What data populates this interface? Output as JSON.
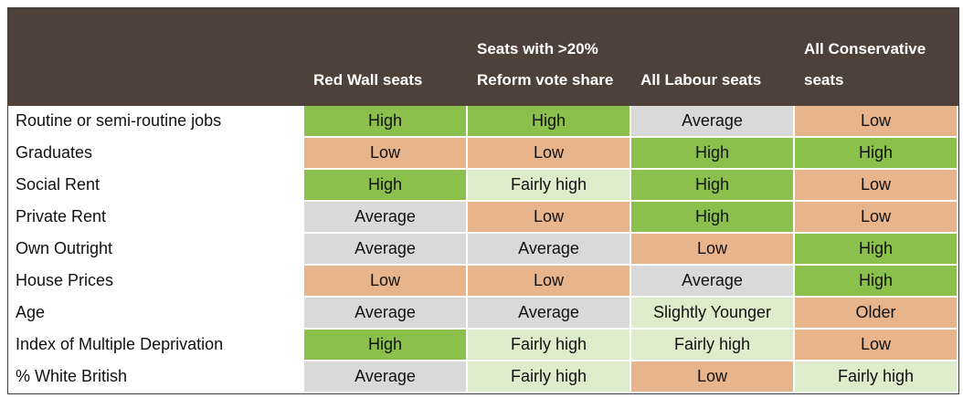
{
  "colors": {
    "header_bg": "#4e4139",
    "header_text": "#ffffff",
    "grid": "#ffffff",
    "outer_border": "#3f3f3f",
    "body_text": "#111111"
  },
  "chart_data": {
    "type": "table",
    "title": "",
    "palette": {
      "green": "#8cc04d",
      "light-green": "#ddedcc",
      "tan": "#e8b48c",
      "gray": "#d9d9d9"
    },
    "columns": [
      "",
      "Red Wall seats",
      "Seats with >20% Reform vote share",
      "All Labour seats",
      "All Conservative seats"
    ],
    "rows": [
      {
        "label": "Routine or semi-routine jobs",
        "cells": [
          {
            "text": "High",
            "color": "green"
          },
          {
            "text": "High",
            "color": "green"
          },
          {
            "text": "Average",
            "color": "gray"
          },
          {
            "text": "Low",
            "color": "tan"
          }
        ]
      },
      {
        "label": "Graduates",
        "cells": [
          {
            "text": "Low",
            "color": "tan"
          },
          {
            "text": "Low",
            "color": "tan"
          },
          {
            "text": "High",
            "color": "green"
          },
          {
            "text": "High",
            "color": "green"
          }
        ]
      },
      {
        "label": "Social Rent",
        "cells": [
          {
            "text": "High",
            "color": "green"
          },
          {
            "text": "Fairly high",
            "color": "light-green"
          },
          {
            "text": "High",
            "color": "green"
          },
          {
            "text": "Low",
            "color": "tan"
          }
        ]
      },
      {
        "label": "Private Rent",
        "cells": [
          {
            "text": "Average",
            "color": "gray"
          },
          {
            "text": "Low",
            "color": "tan"
          },
          {
            "text": "High",
            "color": "green"
          },
          {
            "text": "Low",
            "color": "tan"
          }
        ]
      },
      {
        "label": "Own Outright",
        "cells": [
          {
            "text": "Average",
            "color": "gray"
          },
          {
            "text": "Average",
            "color": "gray"
          },
          {
            "text": "Low",
            "color": "tan"
          },
          {
            "text": "High",
            "color": "green"
          }
        ]
      },
      {
        "label": "House Prices",
        "cells": [
          {
            "text": "Low",
            "color": "tan"
          },
          {
            "text": "Low",
            "color": "tan"
          },
          {
            "text": "Average",
            "color": "gray"
          },
          {
            "text": "High",
            "color": "green"
          }
        ]
      },
      {
        "label": "Age",
        "cells": [
          {
            "text": "Average",
            "color": "gray"
          },
          {
            "text": "Average",
            "color": "gray"
          },
          {
            "text": "Slightly Younger",
            "color": "light-green"
          },
          {
            "text": "Older",
            "color": "tan"
          }
        ]
      },
      {
        "label": "Index of Multiple Deprivation",
        "cells": [
          {
            "text": "High",
            "color": "green"
          },
          {
            "text": "Fairly high",
            "color": "light-green"
          },
          {
            "text": "Fairly high",
            "color": "light-green"
          },
          {
            "text": "Low",
            "color": "tan"
          }
        ]
      },
      {
        "label": "% White British",
        "cells": [
          {
            "text": "Average",
            "color": "gray"
          },
          {
            "text": "Fairly high",
            "color": "light-green"
          },
          {
            "text": "Low",
            "color": "tan"
          },
          {
            "text": "Fairly high",
            "color": "light-green"
          }
        ]
      }
    ]
  }
}
